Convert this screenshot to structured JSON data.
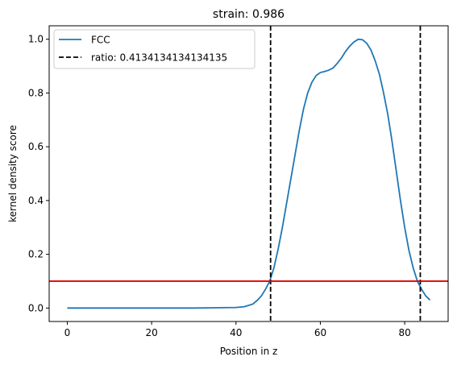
{
  "chart_data": {
    "type": "line",
    "title": "strain: 0.986",
    "xlabel": "Position in z",
    "ylabel": "kernel density score",
    "xlim": [
      -4.3,
      90.3
    ],
    "ylim": [
      -0.05,
      1.05
    ],
    "xticks": [
      0,
      20,
      40,
      60,
      80
    ],
    "xtick_labels": [
      "0",
      "20",
      "40",
      "60",
      "80"
    ],
    "yticks": [
      0.0,
      0.2,
      0.4,
      0.6,
      0.8,
      1.0
    ],
    "ytick_labels": [
      "0.0",
      "0.2",
      "0.4",
      "0.6",
      "0.8",
      "1.0"
    ],
    "grid": false,
    "legend_position": "top-left",
    "series": [
      {
        "name": "FCC",
        "color": "#1f77b4",
        "x": [
          0,
          10,
          20,
          30,
          40,
          42,
          44,
          45,
          46,
          47,
          48,
          49,
          50,
          51,
          52,
          53,
          54,
          55,
          56,
          57,
          58,
          59,
          60,
          61,
          62,
          63,
          64,
          65,
          66,
          67,
          68,
          69,
          70,
          71,
          72,
          73,
          74,
          75,
          76,
          77,
          78,
          79,
          80,
          81,
          82,
          83,
          84,
          85,
          86
        ],
        "y": [
          0,
          0,
          0,
          0,
          0.002,
          0.005,
          0.015,
          0.028,
          0.045,
          0.07,
          0.1,
          0.15,
          0.22,
          0.3,
          0.39,
          0.48,
          0.57,
          0.66,
          0.74,
          0.8,
          0.84,
          0.865,
          0.876,
          0.88,
          0.885,
          0.893,
          0.91,
          0.93,
          0.955,
          0.975,
          0.99,
          1.0,
          0.998,
          0.985,
          0.96,
          0.92,
          0.87,
          0.8,
          0.72,
          0.62,
          0.51,
          0.4,
          0.3,
          0.215,
          0.15,
          0.1,
          0.07,
          0.045,
          0.03
        ]
      }
    ],
    "vlines": {
      "name": "ratio: 0.4134134134134135",
      "color": "#000000",
      "style": "dashed",
      "x": [
        48.2,
        83.7
      ]
    },
    "hline": {
      "y": 0.1,
      "color": "#e00000"
    }
  }
}
